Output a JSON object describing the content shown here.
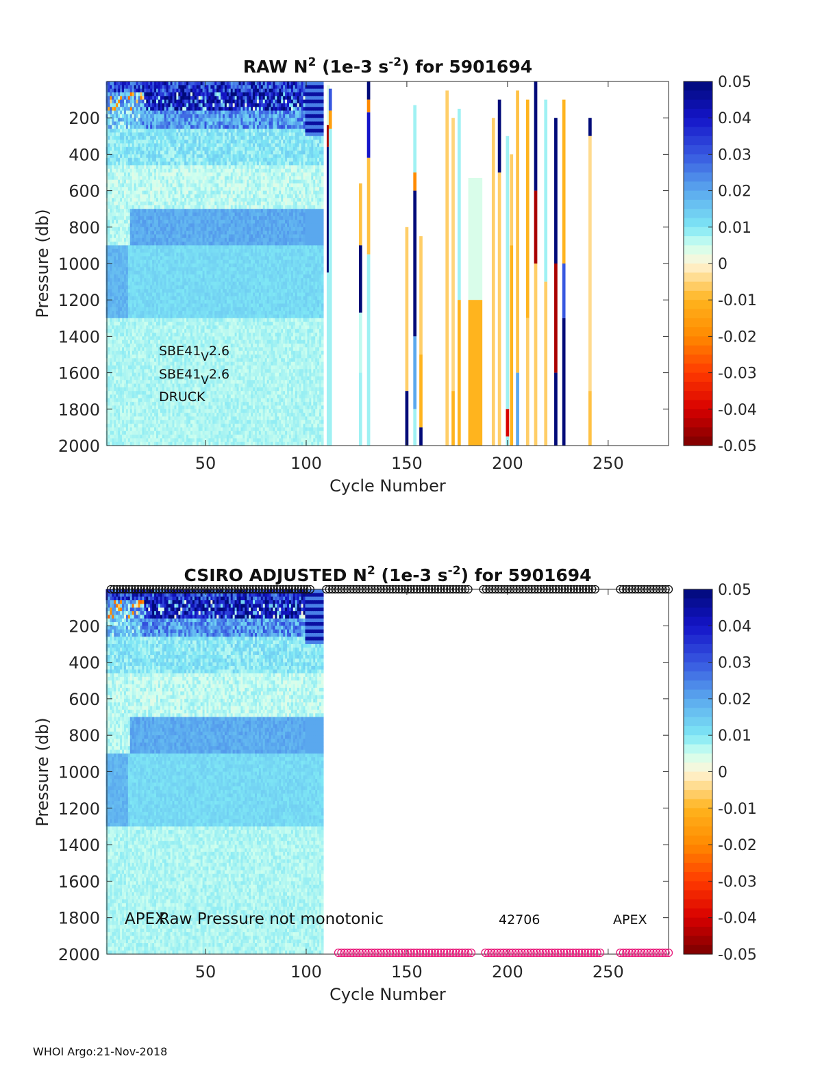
{
  "footer": "WHOI Argo:21-Nov-2018",
  "colormap": {
    "stops": [
      [
        -0.05,
        "#7a0000"
      ],
      [
        -0.04,
        "#d80000"
      ],
      [
        -0.03,
        "#ff3a00"
      ],
      [
        -0.02,
        "#ff8a00"
      ],
      [
        -0.01,
        "#ffb41e"
      ],
      [
        0,
        "#fff5d8"
      ],
      [
        0.005,
        "#cfffef"
      ],
      [
        0.01,
        "#7fe7f5"
      ],
      [
        0.02,
        "#5aa8ee"
      ],
      [
        0.03,
        "#3757e0"
      ],
      [
        0.04,
        "#1414c8"
      ],
      [
        0.05,
        "#000a78"
      ]
    ]
  },
  "chart_data": [
    {
      "type": "heatmap",
      "title": "RAW N² (1e-3 s⁻²) for 5901694",
      "title_parts": {
        "prefix": "RAW N",
        "sup1": "2",
        "mid": " (1e-3 s",
        "sup2": "-2",
        "suffix": ") for 5901694"
      },
      "xlabel": "Cycle Number",
      "ylabel": "Pressure (db)",
      "xlim": [
        1,
        280
      ],
      "ylim": [
        2000,
        0
      ],
      "xticks": [
        50,
        100,
        150,
        200,
        250
      ],
      "yticks": [
        200,
        400,
        600,
        800,
        1000,
        1200,
        1400,
        1600,
        1800,
        2000
      ],
      "colorbar": {
        "range": [
          -0.05,
          0.05
        ],
        "ticks": [
          "0.05",
          "0.04",
          "0.03",
          "0.02",
          "0.01",
          "0",
          "-0.01",
          "-0.02",
          "-0.03",
          "-0.04",
          "-0.05"
        ]
      },
      "annotations": [
        {
          "text": "SBE41",
          "sub": "V",
          "after": "2.6"
        },
        {
          "text": "SBE41",
          "sub": "V",
          "after": "2.6"
        },
        {
          "text": "DRUCK"
        }
      ],
      "dense_block": {
        "cycles": [
          1,
          108
        ]
      },
      "sparse_profiles": [
        {
          "cycle": 111,
          "segments": [
            [
              20,
              240,
              0.003
            ],
            [
              240,
              360,
              -0.045
            ],
            [
              360,
              1050,
              0.05
            ],
            [
              1050,
              2000,
              0.008
            ]
          ]
        },
        {
          "cycle": 112,
          "segments": [
            [
              40,
              160,
              0.03
            ],
            [
              160,
              260,
              -0.015
            ],
            [
              260,
              2000,
              0.008
            ]
          ]
        },
        {
          "cycle": 127,
          "segments": [
            [
              560,
              900,
              -0.008
            ],
            [
              900,
              1270,
              0.05
            ],
            [
              1270,
              1600,
              0.006
            ],
            [
              1600,
              2000,
              0.008
            ]
          ]
        },
        {
          "cycle": 131,
          "segments": [
            [
              0,
              100,
              0.05
            ],
            [
              100,
              170,
              -0.02
            ],
            [
              170,
              420,
              0.04
            ],
            [
              420,
              950,
              -0.008
            ],
            [
              950,
              2000,
              0.008
            ]
          ]
        },
        {
          "cycle": 150,
          "segments": [
            [
              800,
              1700,
              -0.006
            ],
            [
              1700,
              2000,
              0.05
            ]
          ]
        },
        {
          "cycle": 154,
          "segments": [
            [
              130,
              500,
              0.008
            ],
            [
              500,
              600,
              -0.02
            ],
            [
              600,
              1400,
              0.05
            ],
            [
              1400,
              1800,
              0.02
            ],
            [
              1800,
              2000,
              0.008
            ]
          ]
        },
        {
          "cycle": 157,
          "segments": [
            [
              850,
              1500,
              -0.006
            ],
            [
              1500,
              1900,
              -0.01
            ],
            [
              1900,
              2000,
              0.05
            ]
          ]
        },
        {
          "cycle": 170,
          "segments": [
            [
              50,
              2000,
              -0.006
            ]
          ]
        },
        {
          "cycle": 173,
          "segments": [
            [
              200,
              1700,
              -0.005
            ],
            [
              1700,
              2000,
              -0.01
            ]
          ]
        },
        {
          "cycle": 176,
          "segments": [
            [
              150,
              1200,
              0.008
            ],
            [
              1200,
              2000,
              -0.01
            ]
          ]
        },
        {
          "cycle": 184,
          "segments": [
            [
              530,
              1200,
              0.004
            ],
            [
              1200,
              2000,
              -0.01
            ]
          ]
        },
        {
          "cycle": 193,
          "segments": [
            [
              200,
              2000,
              -0.006
            ]
          ]
        },
        {
          "cycle": 196,
          "segments": [
            [
              100,
              500,
              0.05
            ],
            [
              500,
              2000,
              -0.006
            ]
          ]
        },
        {
          "cycle": 200,
          "segments": [
            [
              300,
              1800,
              0.008
            ],
            [
              1800,
              1950,
              -0.04
            ],
            [
              1950,
              2000,
              0.008
            ]
          ]
        },
        {
          "cycle": 202,
          "segments": [
            [
              400,
              900,
              -0.006
            ],
            [
              900,
              2000,
              -0.01
            ]
          ]
        },
        {
          "cycle": 205,
          "segments": [
            [
              50,
              1600,
              -0.008
            ],
            [
              1600,
              2000,
              0.02
            ]
          ]
        },
        {
          "cycle": 210,
          "segments": [
            [
              100,
              1300,
              -0.01
            ],
            [
              1300,
              2000,
              -0.006
            ]
          ]
        },
        {
          "cycle": 214,
          "segments": [
            [
              0,
              600,
              0.05
            ],
            [
              600,
              1000,
              -0.045
            ],
            [
              1000,
              2000,
              -0.006
            ]
          ]
        },
        {
          "cycle": 219,
          "segments": [
            [
              100,
              1100,
              0.008
            ],
            [
              1100,
              2000,
              -0.006
            ]
          ]
        },
        {
          "cycle": 224,
          "segments": [
            [
              200,
              1000,
              0.05
            ],
            [
              1000,
              1600,
              -0.045
            ],
            [
              1600,
              2000,
              0.05
            ]
          ]
        },
        {
          "cycle": 228,
          "segments": [
            [
              100,
              1000,
              -0.01
            ],
            [
              1000,
              1300,
              0.03
            ],
            [
              1300,
              2000,
              0.05
            ]
          ]
        },
        {
          "cycle": 241,
          "segments": [
            [
              200,
              300,
              0.05
            ],
            [
              300,
              1700,
              -0.004
            ],
            [
              1700,
              2000,
              -0.008
            ]
          ]
        }
      ]
    },
    {
      "type": "heatmap",
      "title": "CSIRO ADJUSTED N² (1e-3 s⁻²) for 5901694",
      "title_parts": {
        "prefix": "CSIRO  ADJUSTED N",
        "sup1": "2",
        "mid": " (1e-3 s",
        "sup2": "-2",
        "suffix": ") for 5901694"
      },
      "xlabel": "Cycle Number",
      "ylabel": "Pressure (db)",
      "xlim": [
        1,
        280
      ],
      "ylim": [
        2000,
        0
      ],
      "xticks": [
        50,
        100,
        150,
        200,
        250
      ],
      "yticks": [
        200,
        400,
        600,
        800,
        1000,
        1200,
        1400,
        1600,
        1800,
        2000
      ],
      "colorbar": {
        "range": [
          -0.05,
          0.05
        ],
        "ticks": [
          "0.05",
          "0.04",
          "0.03",
          "0.02",
          "0.01",
          "0",
          "-0.01",
          "-0.02",
          "-0.03",
          "-0.04",
          "-0.05"
        ]
      },
      "annotations": [
        {
          "text": "APEX"
        },
        {
          "text": "Raw Pressure not monotonic"
        },
        {
          "text": "42706"
        },
        {
          "text": "APEX"
        }
      ],
      "dense_block": {
        "cycles": [
          1,
          108
        ]
      },
      "top_markers": {
        "color": "#111111",
        "cycles_ranges": [
          [
            3,
            103
          ],
          [
            110,
            181
          ],
          [
            188,
            244
          ],
          [
            256,
            280
          ]
        ]
      },
      "bottom_markers": {
        "color": "#e8187a",
        "cycles_ranges": [
          [
            116,
            183
          ],
          [
            189,
            247
          ],
          [
            256,
            280
          ]
        ]
      }
    }
  ]
}
